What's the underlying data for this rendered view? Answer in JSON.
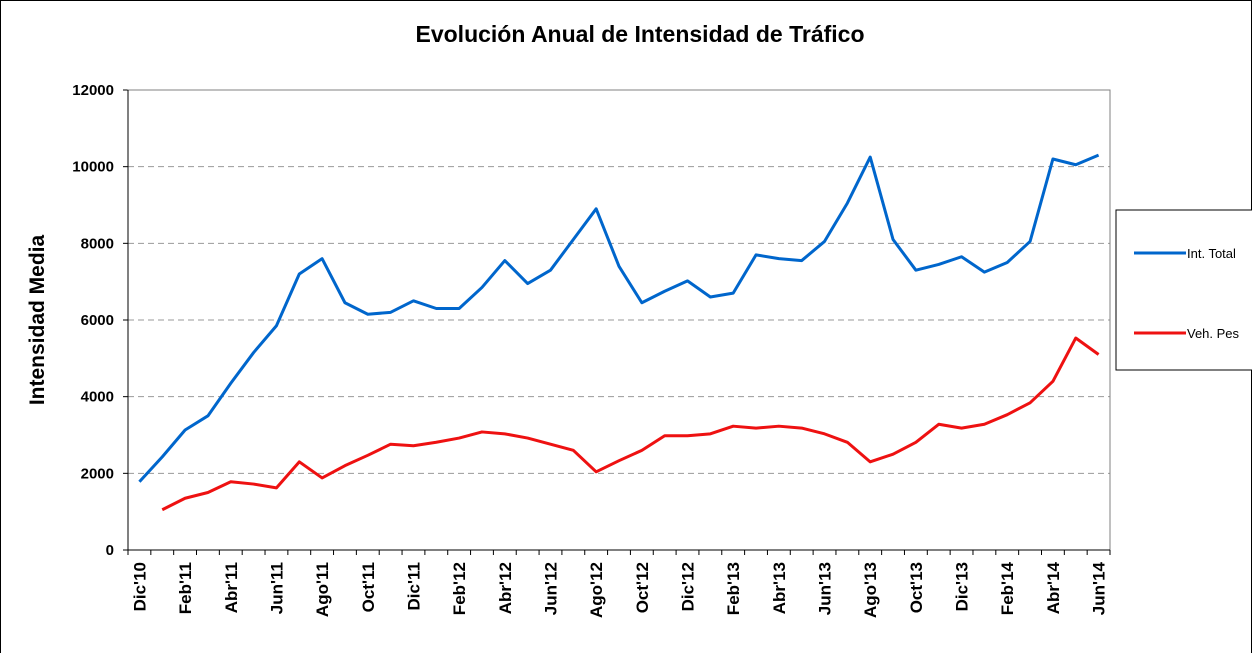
{
  "chart_data": {
    "type": "line",
    "title": "Evolución Anual de Intensidad de Tráfico",
    "y_label": "Intensidad Media",
    "categories": [
      "Dic'10",
      null,
      "Feb'11",
      null,
      "Abr'11",
      null,
      "Jun'11",
      null,
      "Ago'11",
      null,
      "Oct'11",
      null,
      "Dic'11",
      null,
      "Feb'12",
      null,
      "Abr'12",
      null,
      "Jun'12",
      null,
      "Ago'12",
      null,
      "Oct'12",
      null,
      "Dic'12",
      null,
      "Feb'13",
      null,
      "Abr'13",
      null,
      "Jun'13",
      null,
      "Ago'13",
      null,
      "Oct'13",
      null,
      "Dic'13",
      null,
      "Feb'14",
      null,
      "Abr'14",
      null,
      "Jun'14"
    ],
    "series": [
      {
        "name": "Int. Total",
        "color": "#0066cc",
        "values": [
          1780,
          2430,
          3130,
          3500,
          4350,
          5150,
          5850,
          7200,
          7600,
          6450,
          6150,
          6200,
          6500,
          6300,
          6300,
          6850,
          7550,
          6950,
          7300,
          8100,
          8900,
          7400,
          6450,
          6750,
          7020,
          6600,
          6700,
          7700,
          7600,
          7550,
          8050,
          9050,
          10250,
          8100,
          7300,
          7450,
          7650,
          7250,
          7500,
          8050,
          10200,
          10050,
          10300
        ]
      },
      {
        "name": "Veh. Pes",
        "color": "#ee1111",
        "values": [
          null,
          1050,
          1350,
          1500,
          1780,
          1720,
          1620,
          2300,
          1880,
          2200,
          2470,
          2760,
          2720,
          2810,
          2920,
          3080,
          3030,
          2920,
          2760,
          2600,
          2040,
          2330,
          2600,
          2980,
          2980,
          3030,
          3230,
          3180,
          3230,
          3180,
          3030,
          2810,
          2300,
          2500,
          2810,
          3280,
          3180,
          3280,
          3530,
          3840,
          4400,
          5530,
          5100
        ]
      }
    ],
    "ylim": [
      0,
      12000
    ],
    "yticks": [
      0,
      2000,
      4000,
      6000,
      8000,
      10000,
      12000
    ],
    "grid": true,
    "legend": "right"
  }
}
